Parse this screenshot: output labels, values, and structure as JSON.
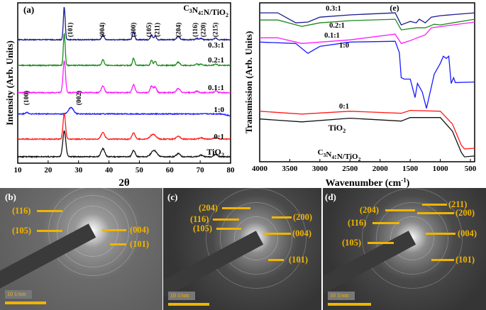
{
  "chart_data": [
    {
      "type": "line",
      "panel_label": "(a)",
      "title": "C3N4:N/TiO2",
      "xlabel": "2θ",
      "ylabel": "Intensity (Arb. Units)",
      "xlim": [
        10,
        80
      ],
      "xticks": [
        "10",
        "20",
        "30",
        "40",
        "50",
        "60",
        "70",
        "80"
      ],
      "grid": false,
      "hkl_labels": [
        {
          "text": "(101)",
          "x": 27.5
        },
        {
          "text": "(004)",
          "x": 38
        },
        {
          "text": "(200)",
          "x": 48.2
        },
        {
          "text": "(105)",
          "x": 53.8
        },
        {
          "text": "(211)",
          "x": 55.6
        },
        {
          "text": "(204)",
          "x": 63
        },
        {
          "text": "(116)",
          "x": 69
        },
        {
          "text": "(220)",
          "x": 70.8
        },
        {
          "text": "(215)",
          "x": 75.2
        },
        {
          "text": "(100)",
          "x": 13
        },
        {
          "text": "(002)",
          "x": 30.3
        }
      ],
      "series": [
        {
          "name": "0.3:1",
          "color": "#1a1a8c",
          "baseline": 77,
          "peaks": [
            [
              25.3,
              20.4,
              0.3
            ],
            [
              38,
              3,
              0.4
            ],
            [
              48.1,
              5,
              0.35
            ],
            [
              54,
              3,
              0.35
            ],
            [
              55.2,
              2.5,
              0.35
            ],
            [
              62.8,
              2,
              0.5
            ],
            [
              68.9,
              0.8,
              0.4
            ],
            [
              70.3,
              0.8,
              0.4
            ],
            [
              75.1,
              1,
              0.4
            ]
          ]
        },
        {
          "name": "0.2:1",
          "color": "#1a8a1a",
          "baseline": 61,
          "peaks": [
            [
              25.3,
              20,
              0.3
            ],
            [
              38,
              3.5,
              0.4
            ],
            [
              48.1,
              4.5,
              0.35
            ],
            [
              54,
              3,
              0.35
            ],
            [
              55.2,
              2.5,
              0.35
            ],
            [
              62.8,
              2,
              0.5
            ],
            [
              68.9,
              0.8,
              0.4
            ],
            [
              70.3,
              0.8,
              0.4
            ],
            [
              75.1,
              1,
              0.4
            ]
          ]
        },
        {
          "name": "0.1:1",
          "color": "#ff1aff",
          "baseline": 44,
          "peaks": [
            [
              25.3,
              20,
              0.4
            ],
            [
              38,
              4,
              0.5
            ],
            [
              48.1,
              5,
              0.45
            ],
            [
              54,
              4,
              0.45
            ],
            [
              55.2,
              3.5,
              0.45
            ],
            [
              62.8,
              2.5,
              0.6
            ],
            [
              68.9,
              0.8,
              0.5
            ],
            [
              75.1,
              1,
              0.5
            ]
          ]
        },
        {
          "name": "1:0",
          "color": "#1a1aff",
          "baseline": 30.7,
          "peaks": [
            [
              13,
              1,
              0.5
            ],
            [
              27.5,
              4,
              0.8
            ]
          ],
          "slope": -0.02
        },
        {
          "name": "0:1",
          "color": "#ff1a1a",
          "baseline": 15,
          "peaks": [
            [
              25.3,
              16,
              0.4
            ],
            [
              38,
              4,
              0.6
            ],
            [
              48.1,
              4,
              0.5
            ],
            [
              54.5,
              3,
              0.9
            ],
            [
              62.8,
              2,
              0.6
            ],
            [
              70.3,
              0.8,
              0.6
            ],
            [
              75.1,
              1,
              0.6
            ]
          ]
        },
        {
          "name": "TiO2",
          "color": "#111111",
          "baseline": 4,
          "peaks": [
            [
              25.3,
              16,
              0.5
            ],
            [
              38,
              5,
              0.6
            ],
            [
              48.1,
              4,
              0.5
            ],
            [
              54.8,
              4,
              0.9
            ],
            [
              62.8,
              2,
              0.6
            ],
            [
              70.3,
              1,
              0.6
            ],
            [
              75.1,
              1.5,
              0.6
            ]
          ]
        }
      ]
    },
    {
      "type": "line",
      "panel_label": "(e)",
      "title": "C3N4:N/TiO2",
      "xlabel": "Wavenumber (cm-1)",
      "ylabel": "Transmission (Arb. Units)",
      "xlim": [
        4000,
        430
      ],
      "xticks": [
        "4000",
        "3500",
        "3000",
        "2500",
        "2000",
        "1500",
        "1000",
        "500"
      ],
      "grid": false,
      "series": [
        {
          "name": "0.3:1",
          "color": "#1a1a8c",
          "points": [
            [
              4000,
              93.7
            ],
            [
              3700,
              93.7
            ],
            [
              3400,
              87.4
            ],
            [
              3200,
              87.9
            ],
            [
              3000,
              91.0
            ],
            [
              2500,
              92.4
            ],
            [
              1750,
              93.7
            ],
            [
              1650,
              86.1
            ],
            [
              1500,
              88.3
            ],
            [
              1400,
              87.4
            ],
            [
              1350,
              89.7
            ],
            [
              1250,
              87.4
            ],
            [
              1150,
              91.0
            ],
            [
              1000,
              91.9
            ],
            [
              430,
              93.7
            ]
          ]
        },
        {
          "name": "0.2:1",
          "color": "#1a8a1a",
          "points": [
            [
              4000,
              89.2
            ],
            [
              3700,
              89.2
            ],
            [
              3300,
              85.2
            ],
            [
              3000,
              87.4
            ],
            [
              2500,
              88.8
            ],
            [
              1750,
              89.7
            ],
            [
              1650,
              83.0
            ],
            [
              1400,
              84.3
            ],
            [
              1250,
              84.3
            ],
            [
              1100,
              86.5
            ],
            [
              1000,
              86.1
            ],
            [
              430,
              89.7
            ]
          ]
        },
        {
          "name": "0.1:1",
          "color": "#ff1aff",
          "points": [
            [
              4000,
              78.0
            ],
            [
              3700,
              78.0
            ],
            [
              3300,
              74.4
            ],
            [
              2500,
              76.7
            ],
            [
              1750,
              80.3
            ],
            [
              1650,
              74.4
            ],
            [
              1500,
              76.2
            ],
            [
              1350,
              78.5
            ],
            [
              1250,
              79.8
            ],
            [
              1150,
              84.3
            ],
            [
              430,
              87.9
            ]
          ]
        },
        {
          "name": "1:0",
          "color": "#1a1aff",
          "points": [
            [
              4000,
              75.3
            ],
            [
              3400,
              74.4
            ],
            [
              3200,
              68.2
            ],
            [
              3000,
              72.6
            ],
            [
              2500,
              75.3
            ],
            [
              1750,
              75.8
            ],
            [
              1680,
              68.6
            ],
            [
              1650,
              52.9
            ],
            [
              1600,
              52.0
            ],
            [
              1500,
              52.0
            ],
            [
              1420,
              40.4
            ],
            [
              1380,
              49.3
            ],
            [
              1300,
              43.9
            ],
            [
              1230,
              33.6
            ],
            [
              1100,
              55.2
            ],
            [
              1000,
              61.9
            ],
            [
              950,
              66.4
            ],
            [
              900,
              65.0
            ],
            [
              860,
              66.4
            ],
            [
              820,
              49.3
            ],
            [
              780,
              52.9
            ],
            [
              750,
              49.8
            ],
            [
              430,
              50.2
            ]
          ]
        },
        {
          "name": "0:1",
          "color": "#ff1a1a",
          "points": [
            [
              4000,
              31.8
            ],
            [
              3300,
              30.0
            ],
            [
              2500,
              31.8
            ],
            [
              1650,
              30.5
            ],
            [
              1500,
              32.3
            ],
            [
              1000,
              31.8
            ],
            [
              800,
              23.8
            ],
            [
              650,
              10.3
            ],
            [
              600,
              8.1
            ],
            [
              430,
              8.5
            ]
          ]
        },
        {
          "name": "TiO2",
          "color": "#111111",
          "points": [
            [
              4000,
              26.9
            ],
            [
              3300,
              25.1
            ],
            [
              2500,
              27.4
            ],
            [
              1650,
              25.6
            ],
            [
              1500,
              27.8
            ],
            [
              1000,
              27.8
            ],
            [
              800,
              19.3
            ],
            [
              650,
              5.8
            ],
            [
              600,
              3.1
            ],
            [
              430,
              3.6
            ]
          ]
        }
      ]
    }
  ],
  "saed": [
    {
      "panel_label": "(b)",
      "scale_bar": "10 1/nm",
      "labels": [
        "(116)",
        "(105)",
        "(004)",
        "(101)"
      ]
    },
    {
      "panel_label": "(c)",
      "scale_bar": "10 1/nm",
      "labels": [
        "(204)",
        "(116)",
        "(105)",
        "(200)",
        "(004)",
        "(101)"
      ]
    },
    {
      "panel_label": "(d)",
      "scale_bar": "10 1/nm",
      "labels": [
        "(211)",
        "(204)",
        "(200)",
        "(116)",
        "(004)",
        "(105)",
        "(101)"
      ]
    }
  ],
  "colors": {
    "annotation": "#f0b400"
  }
}
